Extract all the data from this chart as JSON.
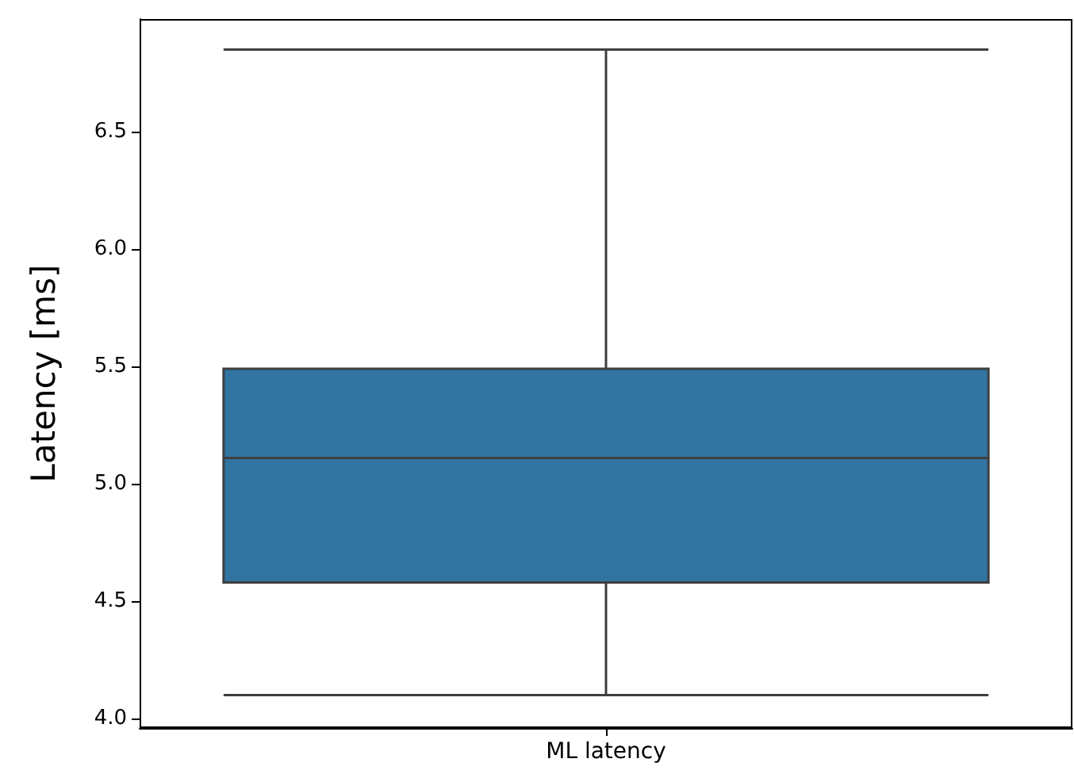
{
  "chart_data": {
    "type": "box",
    "ylabel": "Latency [ms]",
    "categories": [
      "ML latency"
    ],
    "boxes": [
      {
        "low": 4.1,
        "q1": 4.58,
        "median": 5.11,
        "q3": 5.49,
        "high": 6.85
      }
    ],
    "color": "#3274a1",
    "ylim": [
      3.96,
      6.98
    ],
    "yticks": [
      {
        "value": 4,
        "label": "4.0"
      },
      {
        "value": 4.5,
        "label": "4.5"
      },
      {
        "value": 5,
        "label": "5.0"
      },
      {
        "value": 5.5,
        "label": "5.5"
      },
      {
        "value": 6,
        "label": "6.0"
      },
      {
        "value": 6.5,
        "label": "6.5"
      }
    ],
    "grid": false
  }
}
